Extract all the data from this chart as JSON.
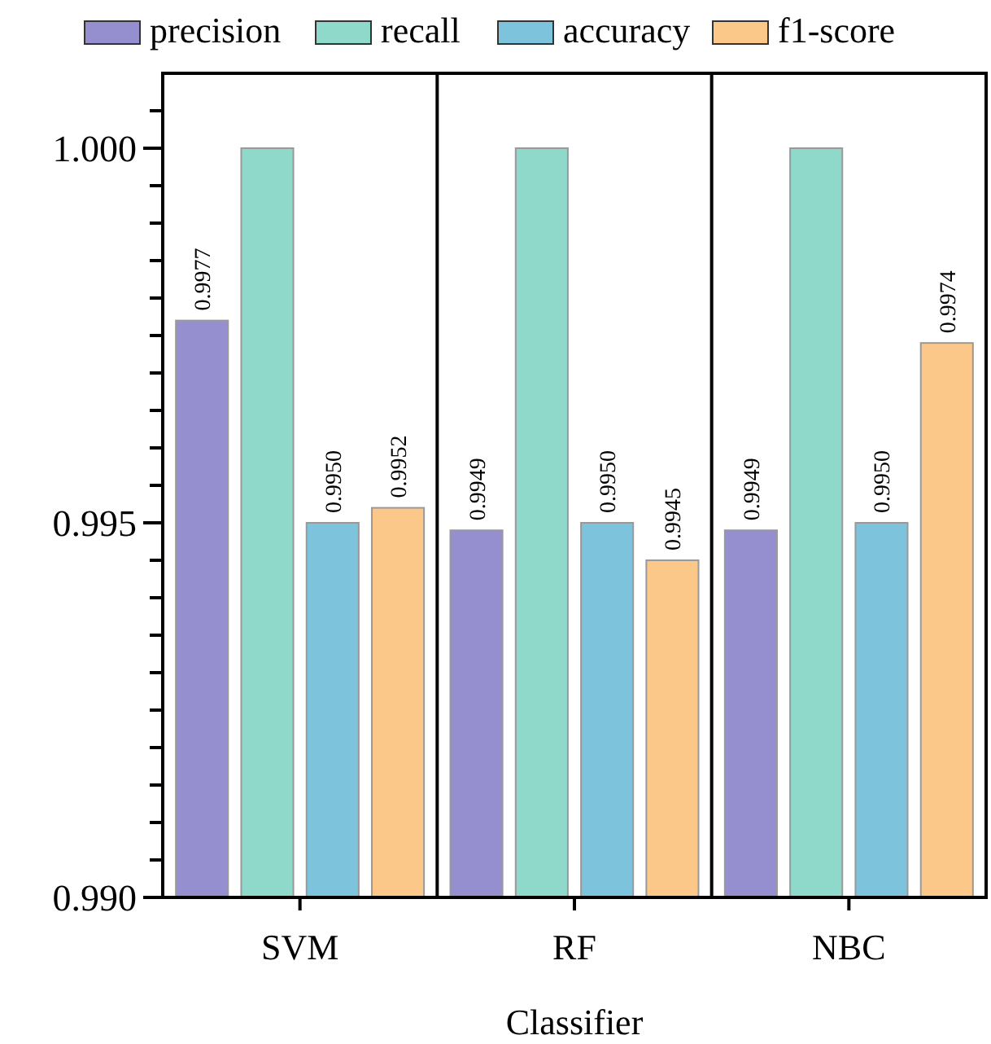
{
  "chart_data": {
    "type": "bar",
    "xlabel": "Classifier",
    "categories": [
      "SVM",
      "RF",
      "NBC"
    ],
    "series": [
      {
        "name": "precision",
        "color": "#958fd0",
        "values": [
          0.9977,
          0.9949,
          0.9949
        ],
        "value_labels": [
          "0.9977",
          "0.9949",
          "0.9949"
        ]
      },
      {
        "name": "recall",
        "color": "#8fd9cb",
        "values": [
          1.0,
          1.0,
          1.0
        ],
        "value_labels": [
          null,
          null,
          null
        ]
      },
      {
        "name": "accuracy",
        "color": "#7ec3dc",
        "values": [
          0.995,
          0.995,
          0.995
        ],
        "value_labels": [
          "0.9950",
          "0.9950",
          "0.9950"
        ]
      },
      {
        "name": "f1-score",
        "color": "#fcc88a",
        "values": [
          0.9952,
          0.9945,
          0.9974
        ],
        "value_labels": [
          "0.9952",
          "0.9945",
          "0.9974"
        ]
      }
    ],
    "ylim": [
      0.99,
      1.001
    ],
    "yticks": [
      {
        "value": 0.99,
        "label": "0.990"
      },
      {
        "value": 0.9905,
        "label": null
      },
      {
        "value": 0.991,
        "label": null
      },
      {
        "value": 0.9915,
        "label": null
      },
      {
        "value": 0.992,
        "label": null
      },
      {
        "value": 0.9925,
        "label": null
      },
      {
        "value": 0.993,
        "label": null
      },
      {
        "value": 0.9935,
        "label": null
      },
      {
        "value": 0.994,
        "label": null
      },
      {
        "value": 0.9945,
        "label": null
      },
      {
        "value": 0.995,
        "label": "0.995"
      },
      {
        "value": 0.9955,
        "label": null
      },
      {
        "value": 0.996,
        "label": null
      },
      {
        "value": 0.9965,
        "label": null
      },
      {
        "value": 0.997,
        "label": null
      },
      {
        "value": 0.9975,
        "label": null
      },
      {
        "value": 0.998,
        "label": null
      },
      {
        "value": 0.9985,
        "label": null
      },
      {
        "value": 0.999,
        "label": null
      },
      {
        "value": 0.9995,
        "label": null
      },
      {
        "value": 1.0,
        "label": "1.000"
      },
      {
        "value": 1.0005,
        "label": null
      }
    ],
    "grid": false,
    "legend": "top"
  }
}
